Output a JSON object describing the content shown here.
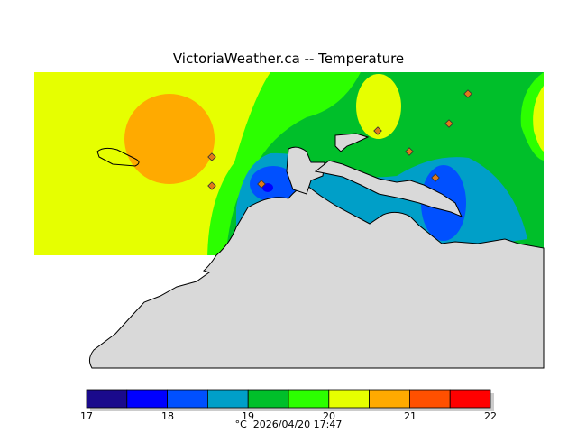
{
  "title": "VictoriaWeather.ca -- Temperature",
  "legend": {
    "ticks": [
      "17",
      "18",
      "19",
      "20",
      "21",
      "22"
    ],
    "unit": "°C",
    "timestamp": "2026/04/20 17:47",
    "colors": [
      "#1a0a8c",
      "#0000ff",
      "#0050ff",
      "#009fc8",
      "#00bf2a",
      "#2cff00",
      "#e6ff00",
      "#ffaa00",
      "#ff5000",
      "#ff0000"
    ]
  },
  "map_colors": {
    "land": "#d9d9d9",
    "coast": "#000000",
    "station_fill": "#e07a1a"
  }
}
